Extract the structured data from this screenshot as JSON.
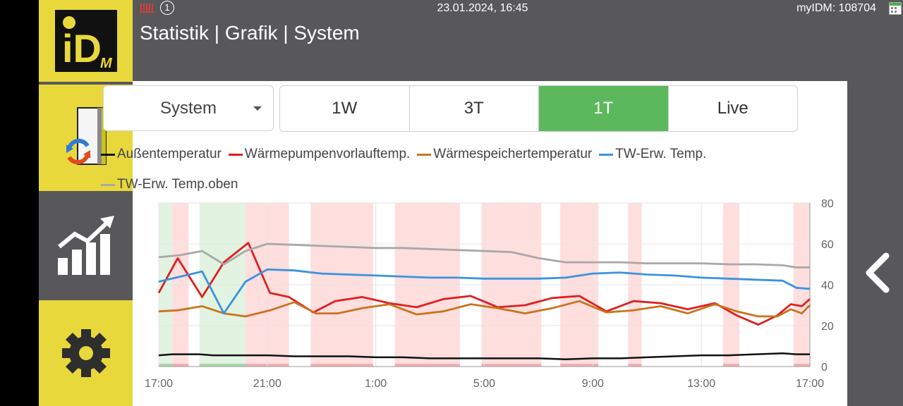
{
  "status": {
    "datetime": "23.01.2024, 16:45",
    "myidm": "myIDM: 108704",
    "info_badge": "1"
  },
  "page_title": "Statistik | Grafik | System",
  "sidebar": {
    "logo_text": "iD",
    "logo_sub": "M",
    "items": [
      {
        "name": "system",
        "icon": "heatpump-cycle-icon"
      },
      {
        "name": "statistics",
        "icon": "bar-chart-trend-icon"
      },
      {
        "name": "settings",
        "icon": "gear-icon"
      }
    ]
  },
  "dropdown": {
    "value": "System"
  },
  "ranges": [
    "1W",
    "3T",
    "1T",
    "Live"
  ],
  "active_range": "1T",
  "colors": {
    "accent_yellow": "#e8d83c",
    "active_green": "#5cb85c",
    "band_red": "#ffdede",
    "band_green": "#e2f3e2"
  },
  "chart_data": {
    "type": "line",
    "x_ticks": [
      "17:00",
      "21:00",
      "1:00",
      "5:00",
      "9:00",
      "13:00",
      "17:00"
    ],
    "y_ticks": [
      "0",
      "20",
      "40",
      "60",
      "80"
    ],
    "ylim": [
      0,
      80
    ],
    "xlim_hours": [
      0,
      24
    ],
    "series": [
      {
        "name": "Außentemperatur",
        "color": "#111111",
        "x": [
          0,
          0.5,
          1,
          1.5,
          2,
          2.5,
          3,
          3.5,
          4,
          5,
          6,
          7,
          8,
          9,
          10,
          11,
          12,
          13,
          14,
          15,
          16,
          17,
          18,
          19,
          20,
          21,
          22,
          23,
          23.5,
          24
        ],
        "y": [
          5.5,
          6,
          6,
          6,
          5.5,
          5.5,
          5.5,
          5.5,
          5.5,
          5,
          5,
          5,
          4.5,
          4.5,
          4,
          4,
          4,
          4,
          4,
          3.5,
          4,
          4,
          4.5,
          5,
          5.5,
          5.5,
          6,
          6.5,
          6,
          6
        ]
      },
      {
        "name": "Wärmepumpenvorlauftemp.",
        "color": "#dd2020",
        "x": [
          0,
          0.7,
          1.6,
          2.4,
          3.3,
          4.1,
          4.8,
          5.7,
          6.5,
          7.5,
          8.5,
          9.5,
          10.5,
          11.5,
          12.5,
          13.5,
          14.5,
          15.5,
          16.5,
          17.5,
          18.5,
          19.5,
          20.5,
          21.3,
          22.1,
          22.8,
          23.3,
          23.7,
          24
        ],
        "y": [
          36,
          53,
          34,
          51,
          60.5,
          36,
          34,
          26.5,
          32,
          34,
          31,
          29,
          33,
          34.5,
          29,
          30,
          33.5,
          34.5,
          27,
          32,
          31,
          28,
          31,
          25,
          20.5,
          25,
          30.5,
          29.5,
          33
        ]
      },
      {
        "name": "Wärmespeichertemperatur",
        "color": "#c8741c",
        "x": [
          0,
          0.7,
          1.6,
          2.4,
          3.2,
          4.1,
          5,
          5.8,
          6.6,
          7.5,
          8.5,
          9.5,
          10.5,
          11.5,
          12.5,
          13.5,
          14.5,
          15.5,
          16.5,
          17.5,
          18.5,
          19.5,
          20.5,
          21.3,
          22.1,
          22.8,
          23.3,
          23.7,
          24
        ],
        "y": [
          27,
          27.5,
          29.5,
          26,
          24.5,
          27.5,
          31.5,
          26,
          26,
          28.5,
          30.5,
          25.5,
          27,
          30.5,
          28.5,
          26,
          28.5,
          32,
          26.5,
          27.5,
          29.5,
          26,
          30.5,
          27,
          24.5,
          24.5,
          28,
          26,
          30
        ]
      },
      {
        "name": "TW-Erw. Temp.",
        "color": "#3a93e0",
        "x": [
          0,
          0.8,
          1.6,
          2.4,
          3.2,
          4,
          5,
          6,
          7,
          8,
          9,
          10,
          11,
          12,
          13,
          14,
          15,
          16,
          17,
          18,
          19,
          20,
          21,
          22,
          23,
          23.5,
          24
        ],
        "y": [
          41.5,
          44,
          46.5,
          26,
          41.5,
          47.5,
          47,
          45.5,
          45,
          44.5,
          44,
          43.5,
          43.5,
          43,
          43,
          43,
          43.5,
          45.5,
          46,
          45,
          44.5,
          43.5,
          43,
          42.5,
          42,
          38.5,
          38
        ]
      },
      {
        "name": "TW-Erw. Temp.oben",
        "color": "#a8a8a8",
        "x": [
          0,
          0.8,
          1.6,
          2.4,
          3.2,
          4,
          5,
          6,
          7,
          8,
          9,
          10,
          11,
          12,
          13,
          14,
          15,
          16,
          17,
          18,
          19,
          20,
          21,
          22,
          23,
          23.5,
          24
        ],
        "y": [
          53.5,
          54.5,
          56.5,
          50,
          56.5,
          60,
          59.5,
          59,
          58.5,
          58,
          58,
          57.5,
          57,
          56.5,
          56,
          53,
          51,
          51,
          51,
          50.5,
          50.5,
          50.5,
          50,
          50,
          49.5,
          48.5,
          48.5
        ]
      }
    ],
    "bands": [
      {
        "from": 0,
        "to": 0.5,
        "color": "green"
      },
      {
        "from": 0.5,
        "to": 1.1,
        "color": "red"
      },
      {
        "from": 1.5,
        "to": 3.2,
        "color": "green"
      },
      {
        "from": 3.2,
        "to": 4.8,
        "color": "red"
      },
      {
        "from": 5.6,
        "to": 7.9,
        "color": "red"
      },
      {
        "from": 8.7,
        "to": 11.1,
        "color": "red"
      },
      {
        "from": 11.9,
        "to": 14.1,
        "color": "red"
      },
      {
        "from": 14.8,
        "to": 16.2,
        "color": "red"
      },
      {
        "from": 17.3,
        "to": 17.8,
        "color": "red"
      },
      {
        "from": 20.8,
        "to": 21.4,
        "color": "red"
      },
      {
        "from": 23.4,
        "to": 24,
        "color": "red"
      }
    ],
    "grid": true,
    "legend_position": "top"
  }
}
